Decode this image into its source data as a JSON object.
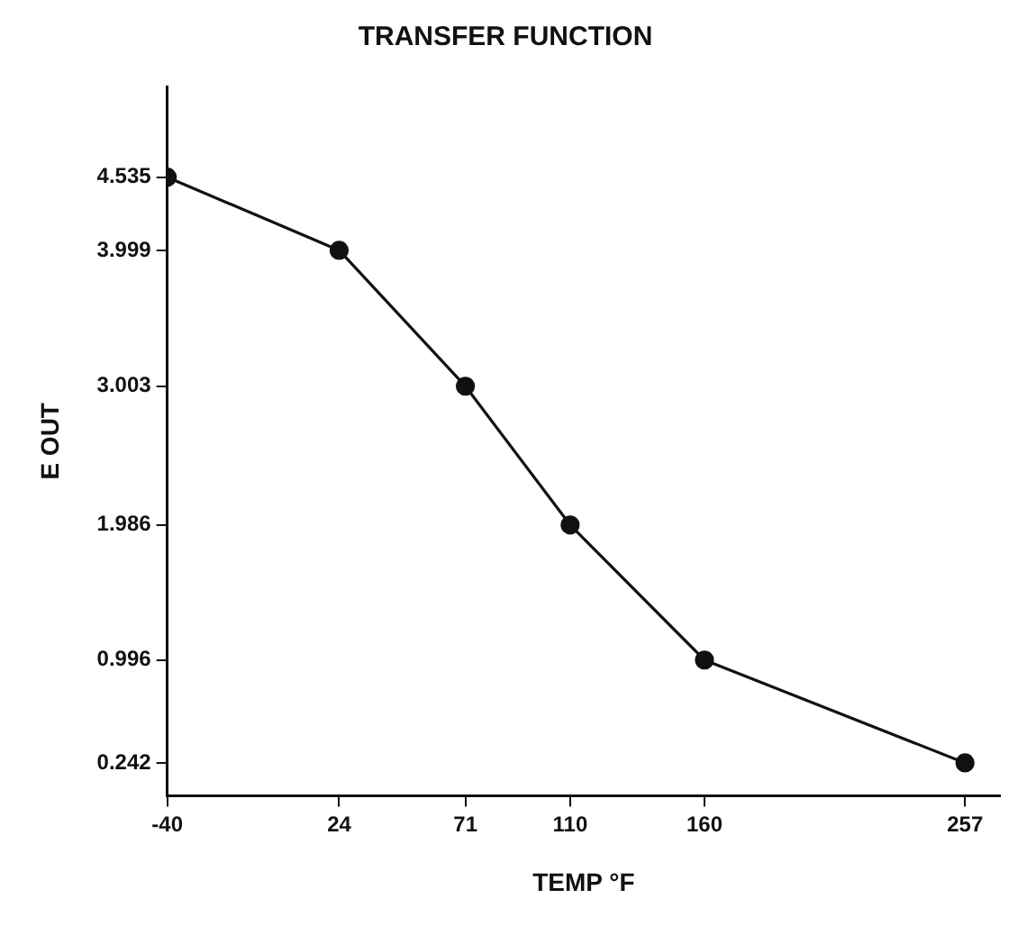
{
  "chart_data": {
    "type": "line",
    "title": "TRANSFER FUNCTION",
    "xlabel": "TEMP °F",
    "ylabel": "E OUT",
    "x": [
      -40,
      24,
      71,
      110,
      160,
      257
    ],
    "series": [
      {
        "color": "#111111",
        "values": [
          4.535,
          3.999,
          3.003,
          1.986,
          0.996,
          0.242
        ]
      }
    ],
    "xlim": [
      -40,
      270
    ],
    "xticks": [
      -40,
      24,
      71,
      110,
      160,
      257
    ],
    "ylim": [
      0,
      5.2
    ],
    "yticks": [
      0.242,
      0.996,
      1.986,
      3.003,
      3.999,
      4.535
    ],
    "grid": false,
    "legend": false,
    "marker": "circle",
    "line_style": "solid"
  }
}
